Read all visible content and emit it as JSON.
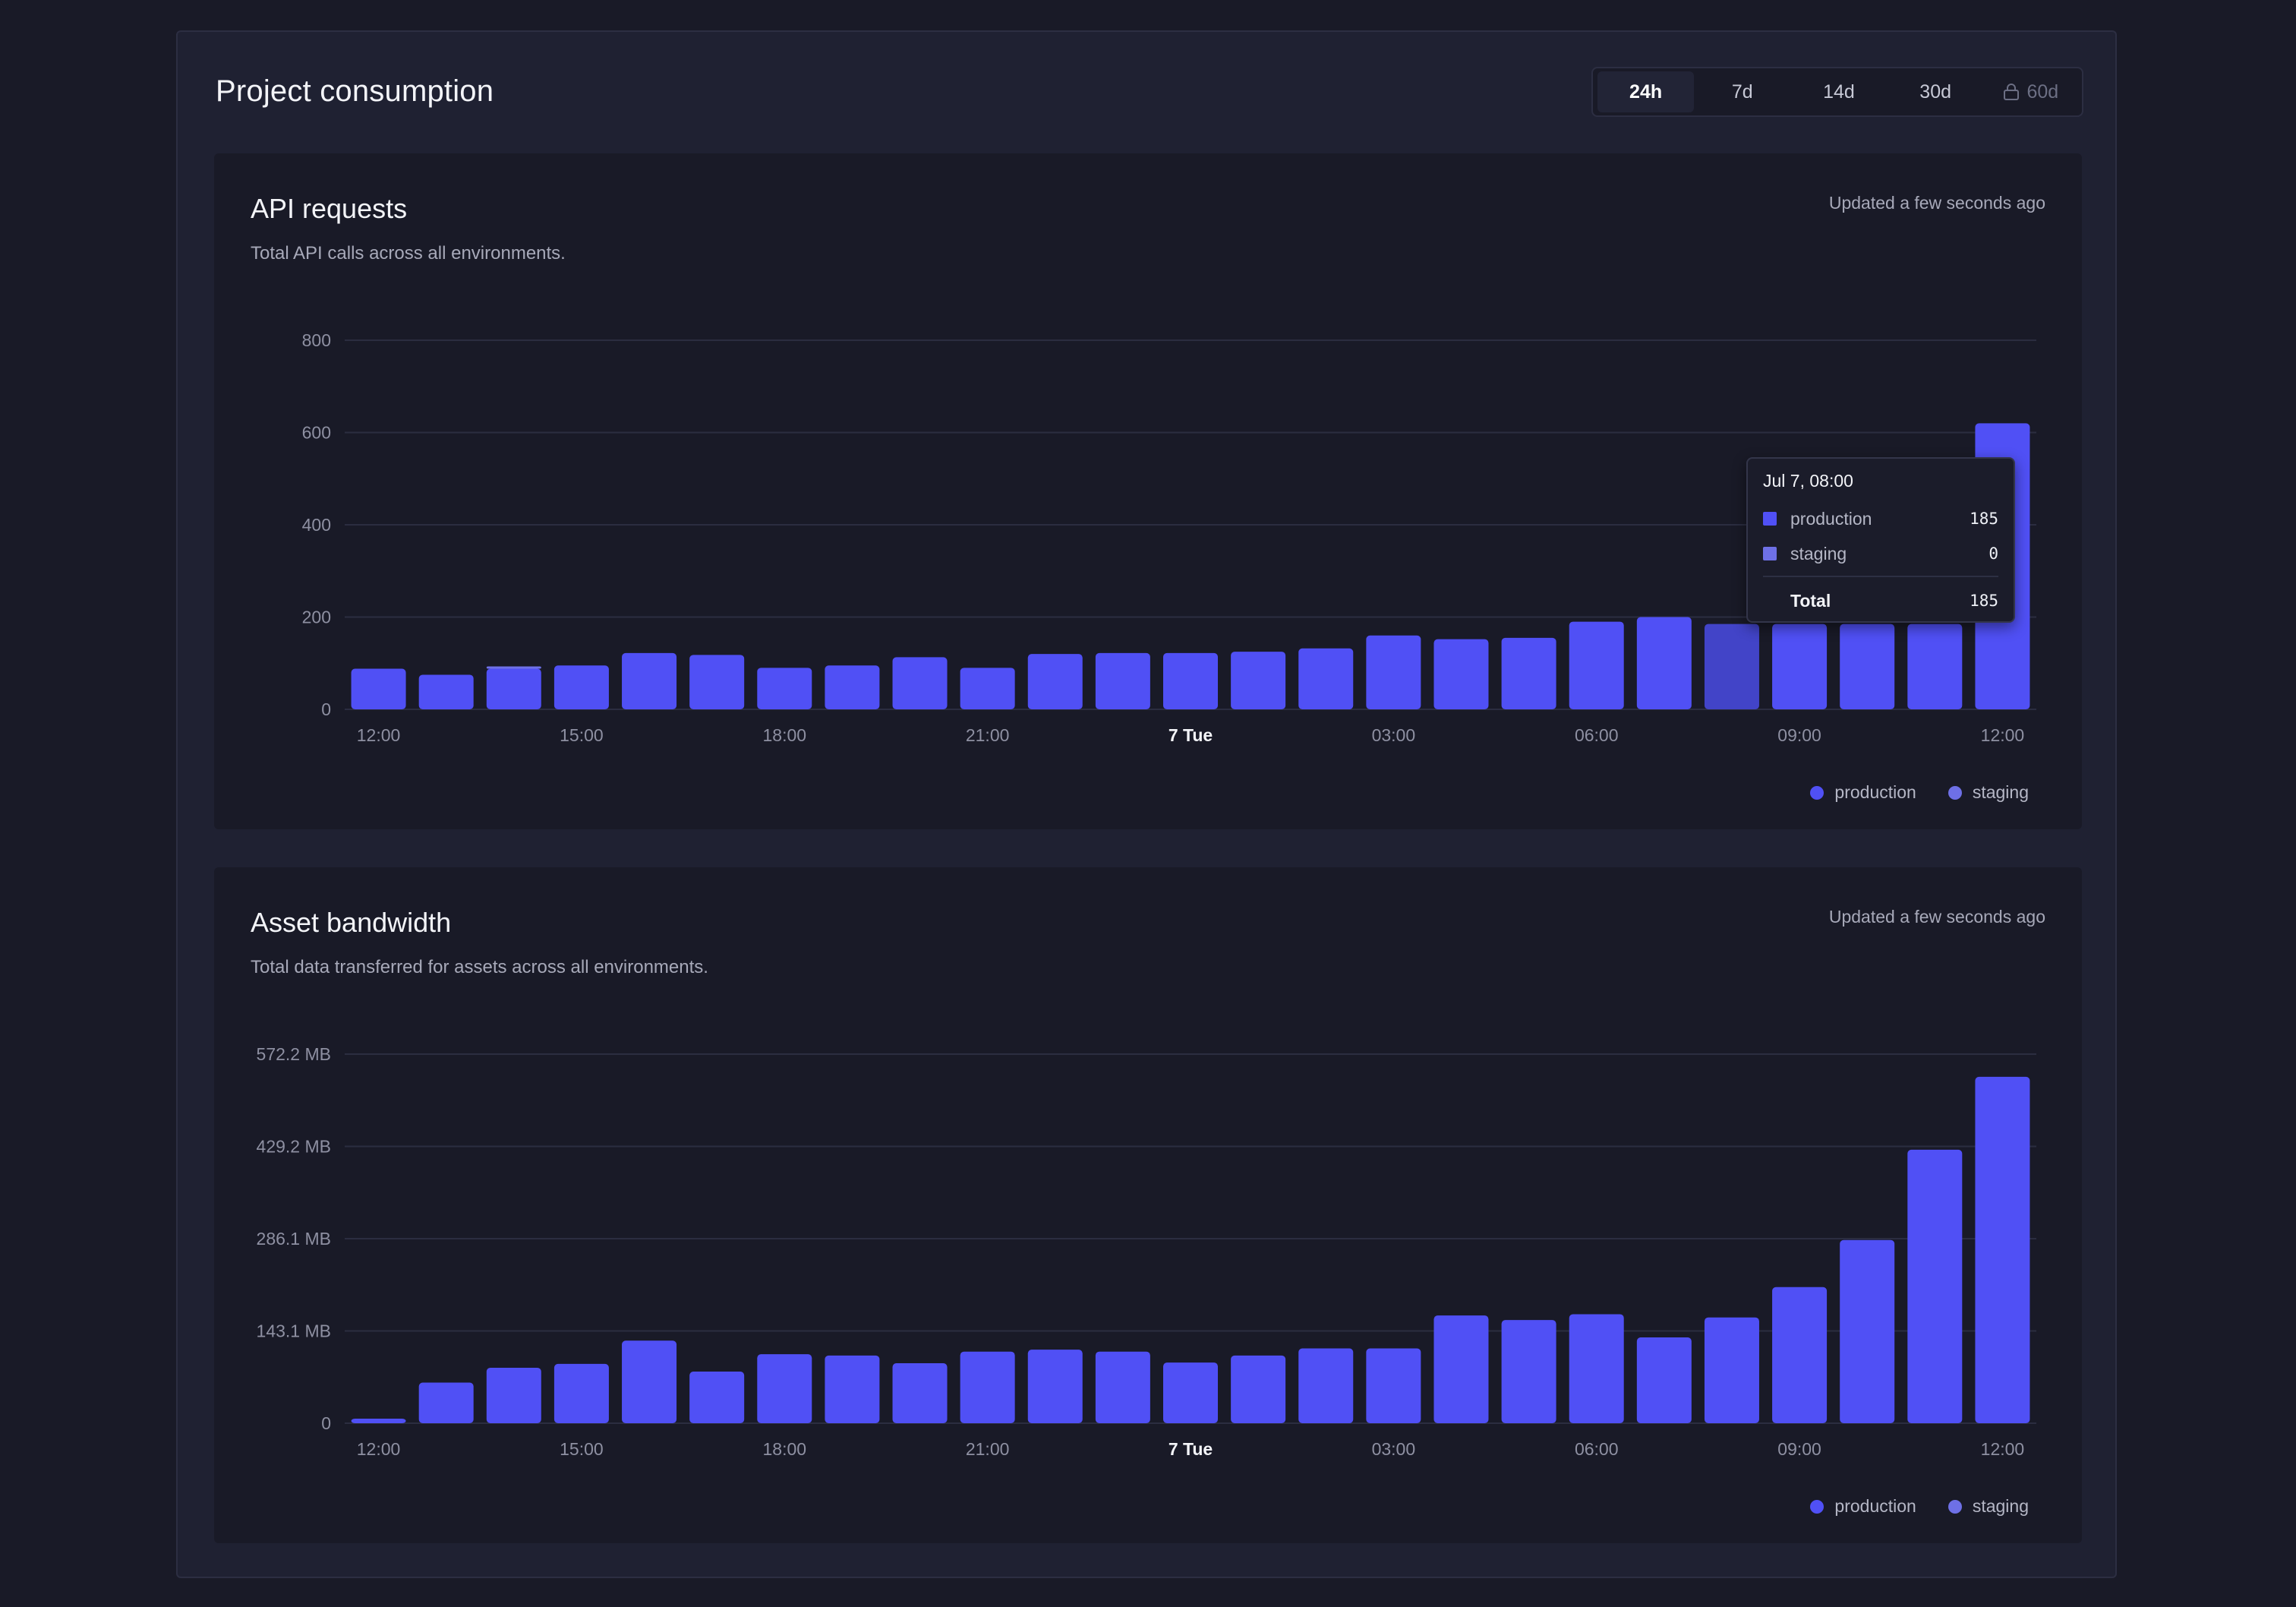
{
  "page": {
    "title": "Project consumption"
  },
  "range_tabs": [
    {
      "label": "24h",
      "active": true,
      "locked": false
    },
    {
      "label": "7d",
      "active": false,
      "locked": false
    },
    {
      "label": "14d",
      "active": false,
      "locked": false
    },
    {
      "label": "30d",
      "active": false,
      "locked": false
    },
    {
      "label": "60d",
      "active": false,
      "locked": true,
      "icon": "lock-icon"
    }
  ],
  "colors": {
    "production": "#5050f5",
    "staging": "#6e70e6",
    "highlight": "#4244c8",
    "grid": "#2b2d40",
    "axis_text": "#8e90a2"
  },
  "cards": {
    "api": {
      "title": "API requests",
      "subtitle": "Total API calls across all environments.",
      "updated": "Updated a few seconds ago",
      "legend": [
        "production",
        "staging"
      ],
      "tooltip": {
        "title": "Jul 7, 08:00",
        "rows": [
          {
            "label": "production",
            "value": "185"
          },
          {
            "label": "staging",
            "value": "0"
          }
        ],
        "total_label": "Total",
        "total_value": "185"
      }
    },
    "bandwidth": {
      "title": "Asset bandwidth",
      "subtitle": "Total data transferred for assets across all environments.",
      "updated": "Updated a few seconds ago",
      "legend": [
        "production",
        "staging"
      ]
    }
  },
  "chart_data": [
    {
      "type": "bar",
      "title": "API requests",
      "x_ticks": [
        "12:00",
        "15:00",
        "18:00",
        "21:00",
        "7 Tue",
        "03:00",
        "06:00",
        "09:00",
        "12:00"
      ],
      "x_tick_bold": "7 Tue",
      "y_ticks": [
        "0",
        "200",
        "400",
        "600",
        "800"
      ],
      "ylim": [
        0,
        800
      ],
      "highlighted_index": 20,
      "series": [
        {
          "name": "production",
          "values": [
            88,
            75,
            88,
            95,
            122,
            118,
            90,
            95,
            113,
            90,
            120,
            122,
            122,
            125,
            132,
            160,
            152,
            155,
            190,
            200,
            185,
            185,
            185,
            185,
            620
          ]
        },
        {
          "name": "staging",
          "values": [
            0,
            0,
            2,
            0,
            0,
            0,
            0,
            0,
            0,
            0,
            0,
            0,
            0,
            0,
            0,
            0,
            0,
            0,
            0,
            0,
            0,
            0,
            0,
            0,
            0
          ]
        }
      ]
    },
    {
      "type": "bar",
      "title": "Asset bandwidth",
      "x_ticks": [
        "12:00",
        "15:00",
        "18:00",
        "21:00",
        "7 Tue",
        "03:00",
        "06:00",
        "09:00",
        "12:00"
      ],
      "x_tick_bold": "7 Tue",
      "y_ticks": [
        "0",
        "143.1 MB",
        "286.1 MB",
        "429.2 MB",
        "572.2 MB"
      ],
      "ylim": [
        0,
        572.2
      ],
      "unit": "MB",
      "series": [
        {
          "name": "production",
          "values": [
            7,
            63,
            86,
            92,
            128,
            80,
            107,
            105,
            93,
            111,
            114,
            111,
            94,
            105,
            116,
            116,
            167,
            160,
            169,
            133,
            164,
            211,
            284,
            424,
            537
          ]
        },
        {
          "name": "staging",
          "values": [
            0,
            0,
            0,
            0,
            0,
            0,
            0,
            0,
            0,
            0,
            0,
            0,
            0,
            0,
            0,
            0,
            0,
            0,
            0,
            0,
            0,
            0,
            0,
            0,
            0
          ]
        }
      ]
    }
  ]
}
